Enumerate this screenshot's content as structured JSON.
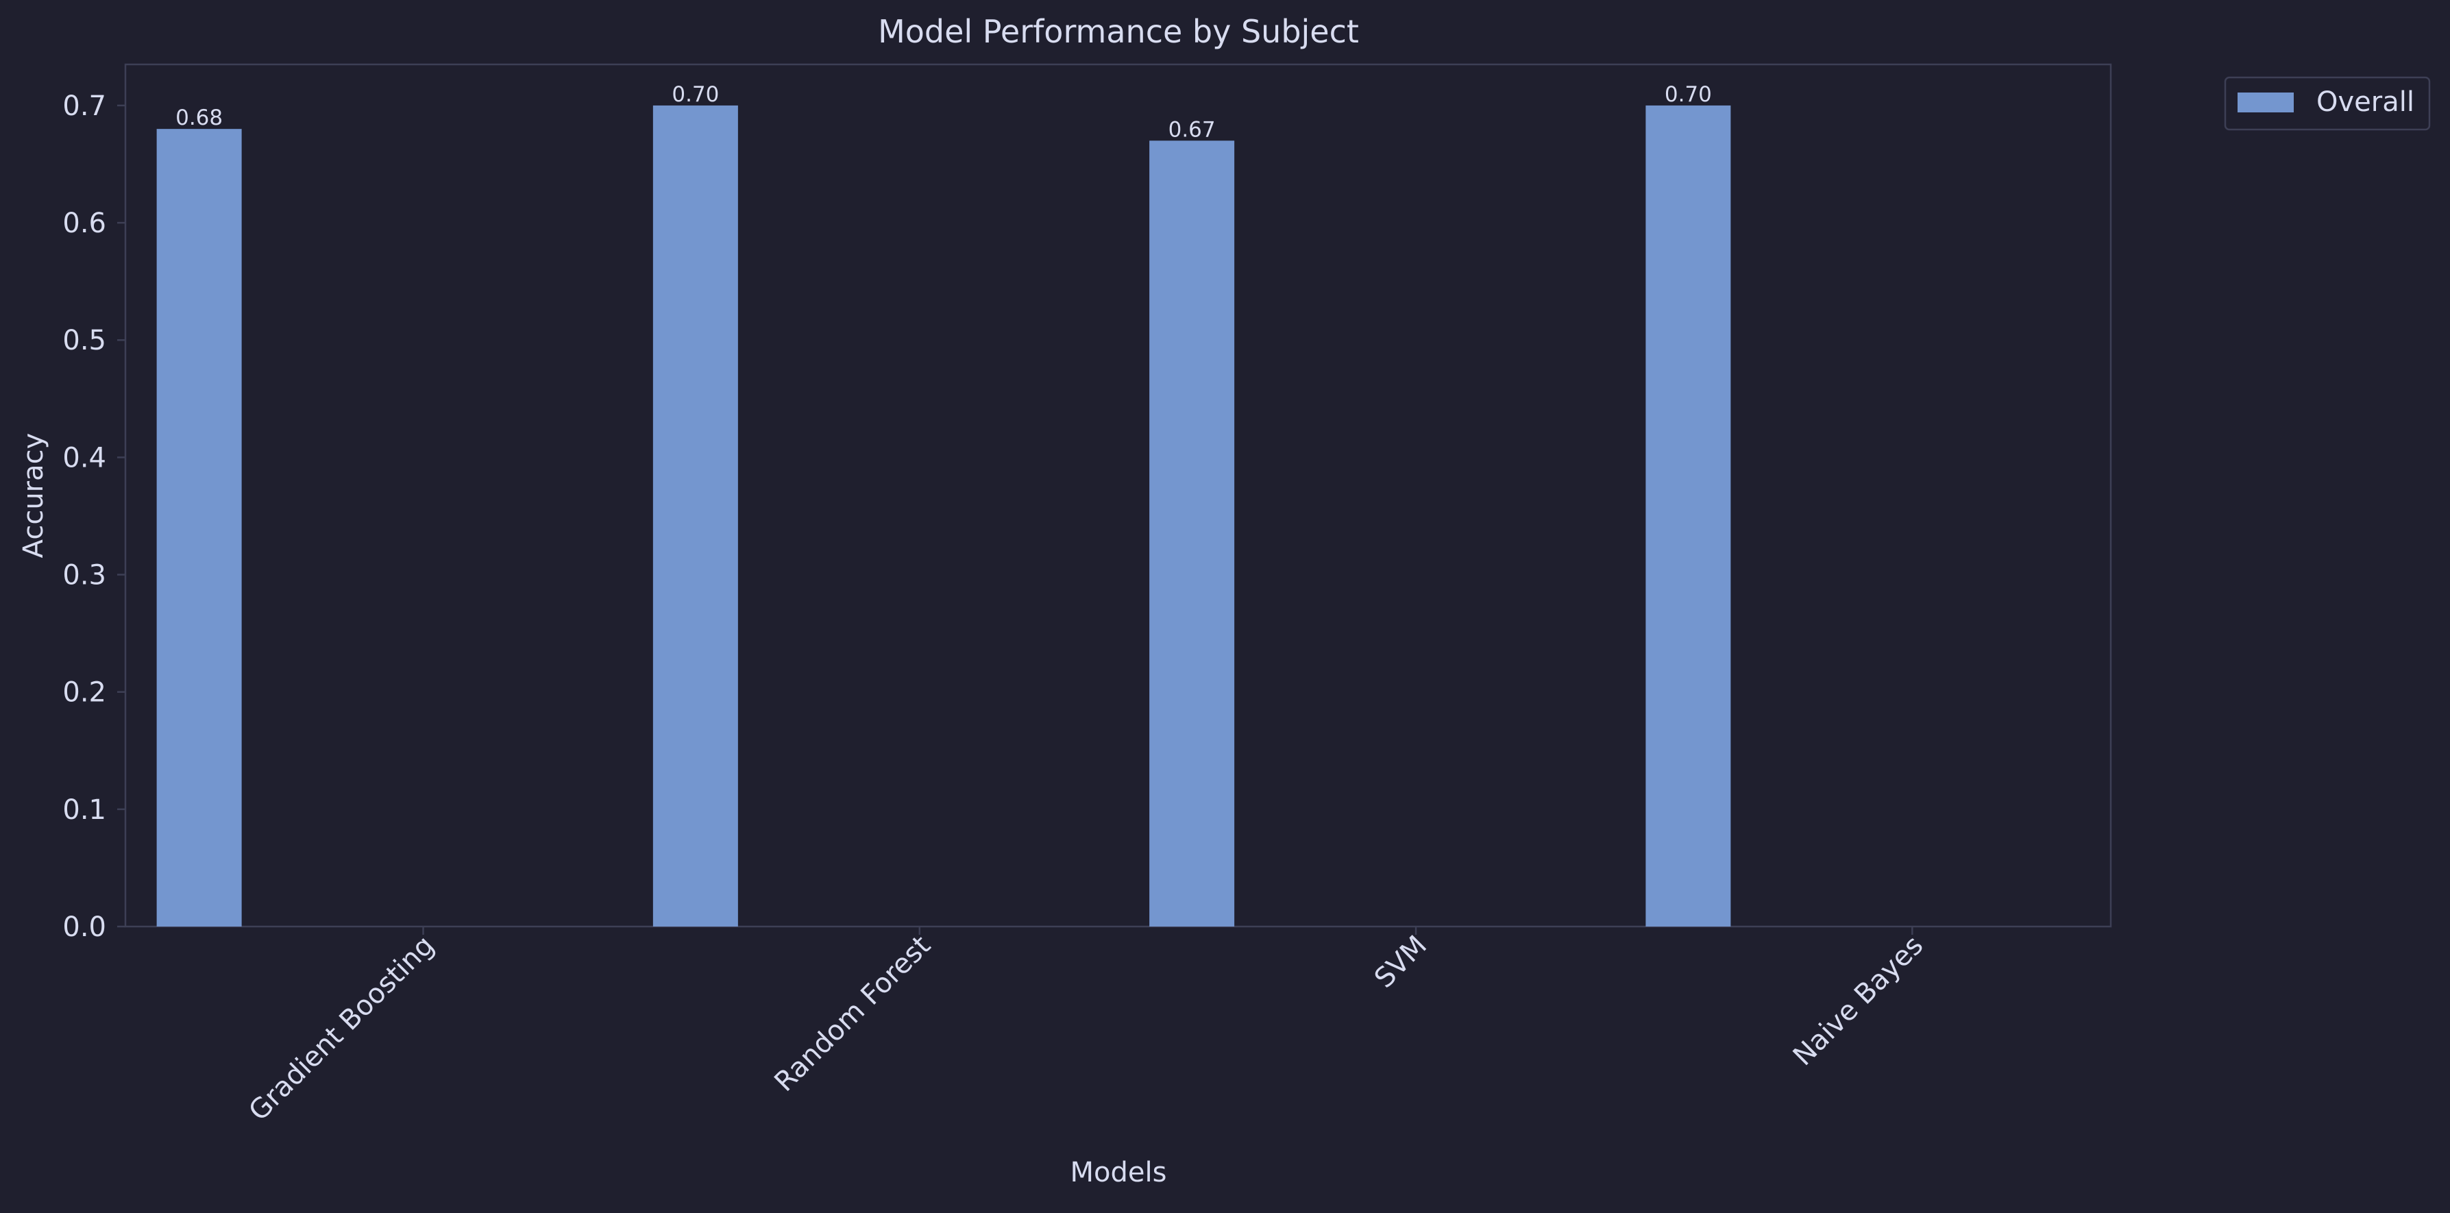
{
  "chart_data": {
    "type": "bar",
    "title": "Model Performance by Subject",
    "xlabel": "Models",
    "ylabel": "Accuracy",
    "categories": [
      "Gradient Boosting",
      "Random Forest",
      "SVM",
      "Naive Bayes"
    ],
    "series": [
      {
        "name": "Overall",
        "values": [
          0.68,
          0.7,
          0.67,
          0.7
        ],
        "value_labels": [
          "0.68",
          "0.70",
          "0.67",
          "0.70"
        ]
      }
    ],
    "ylim": [
      0,
      0.735
    ],
    "yticks": [
      0.0,
      0.1,
      0.2,
      0.3,
      0.4,
      0.5,
      0.6,
      0.7
    ],
    "ytick_labels": [
      "0.0",
      "0.1",
      "0.2",
      "0.3",
      "0.4",
      "0.5",
      "0.6",
      "0.7"
    ],
    "grid": false,
    "legend_position": "top-right, outside plot",
    "colors": {
      "background": "#1f1f2e",
      "bar": "#7496cf",
      "text": "#d8dcf0",
      "axis": "#3d3f55",
      "legend_border": "#3d3f55"
    }
  }
}
